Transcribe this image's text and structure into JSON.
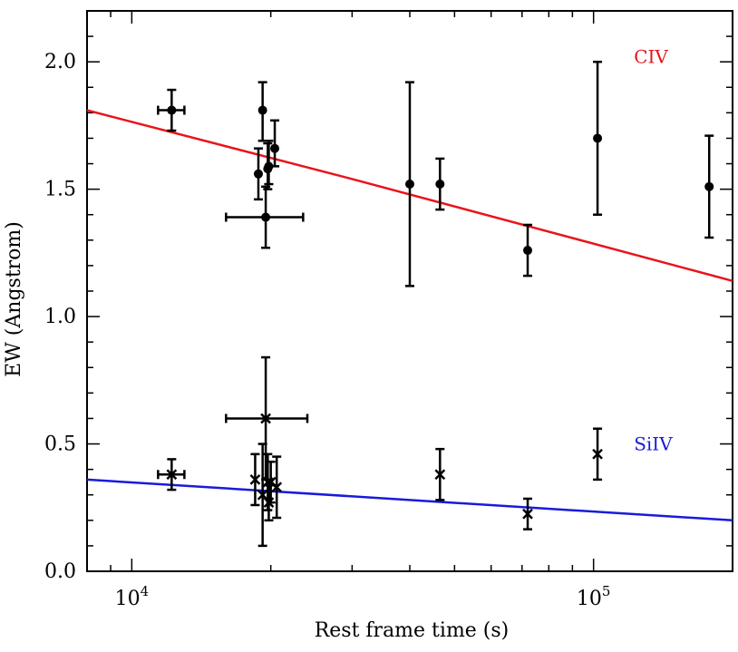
{
  "chart_data": {
    "type": "scatter",
    "xscale": "log",
    "xlim": [
      8000,
      200000
    ],
    "ylim": [
      0.0,
      2.2
    ],
    "xlabel": "Rest frame time (s)",
    "ylabel": "EW (Angstrom)",
    "xticks": [
      {
        "value": 10000,
        "base": "10",
        "exp": "4"
      },
      {
        "value": 100000,
        "base": "10",
        "exp": "5"
      }
    ],
    "yticks": [
      {
        "value": 0.0,
        "label": "0.0"
      },
      {
        "value": 0.5,
        "label": "0.5"
      },
      {
        "value": 1.0,
        "label": "1.0"
      },
      {
        "value": 1.5,
        "label": "1.5"
      },
      {
        "value": 2.0,
        "label": "2.0"
      }
    ],
    "series": [
      {
        "name": "CIV",
        "label_color": "#e8141b",
        "line_color": "#e8141b",
        "marker_color": "#000000",
        "marker": "circle",
        "label_position": {
          "x": 103000,
          "y": 2.02
        },
        "fit": [
          [
            8000,
            1.81
          ],
          [
            30000,
            1.54
          ],
          [
            200000,
            1.14
          ]
        ],
        "points": [
          {
            "x": 12200,
            "y": 1.81,
            "xerr": [
              11400,
              13000
            ],
            "yerr": [
              1.73,
              1.89
            ]
          },
          {
            "x": 18800,
            "y": 1.56,
            "yerr": [
              1.46,
              1.66
            ]
          },
          {
            "x": 19200,
            "y": 1.81,
            "yerr": [
              1.69,
              1.92
            ]
          },
          {
            "x": 19500,
            "y": 1.39,
            "xerr": [
              16000,
              23500
            ],
            "yerr": [
              1.27,
              1.51
            ]
          },
          {
            "x": 19700,
            "y": 1.58,
            "yerr": [
              1.5,
              1.68
            ]
          },
          {
            "x": 19800,
            "y": 1.59,
            "yerr": [
              1.52,
              1.69
            ]
          },
          {
            "x": 20400,
            "y": 1.66,
            "yerr": [
              1.59,
              1.77
            ]
          },
          {
            "x": 40000,
            "y": 1.52,
            "yerr": [
              1.12,
              1.92
            ]
          },
          {
            "x": 46500,
            "y": 1.52,
            "yerr": [
              1.42,
              1.62
            ]
          },
          {
            "x": 72000,
            "y": 1.26,
            "yerr": [
              1.16,
              1.36
            ]
          },
          {
            "x": 102000,
            "y": 1.7,
            "yerr": [
              1.4,
              2.0
            ]
          },
          {
            "x": 178000,
            "y": 1.51,
            "yerr": [
              1.31,
              1.71
            ]
          }
        ]
      },
      {
        "name": "SiIV",
        "label_color": "#1a1adc",
        "line_color": "#1a1adc",
        "marker_color": "#000000",
        "marker": "cross",
        "label_position": {
          "x": 103000,
          "y": 0.5
        },
        "fit": [
          [
            8000,
            0.36
          ],
          [
            200000,
            0.2
          ]
        ],
        "points": [
          {
            "x": 12200,
            "y": 0.38,
            "xerr": [
              11400,
              13000
            ],
            "yerr": [
              0.32,
              0.44
            ]
          },
          {
            "x": 18500,
            "y": 0.36,
            "yerr": [
              0.26,
              0.46
            ]
          },
          {
            "x": 19200,
            "y": 0.3,
            "yerr": [
              0.1,
              0.5
            ]
          },
          {
            "x": 19500,
            "y": 0.6,
            "xerr": [
              16000,
              24000
            ],
            "yerr": [
              0.36,
              0.84
            ]
          },
          {
            "x": 19700,
            "y": 0.35,
            "yerr": [
              0.24,
              0.46
            ]
          },
          {
            "x": 19800,
            "y": 0.27,
            "yerr": [
              0.2,
              0.34
            ]
          },
          {
            "x": 20000,
            "y": 0.35,
            "yerr": [
              0.27,
              0.43
            ]
          },
          {
            "x": 20600,
            "y": 0.33,
            "yerr": [
              0.21,
              0.45
            ]
          },
          {
            "x": 46500,
            "y": 0.38,
            "yerr": [
              0.28,
              0.48
            ]
          },
          {
            "x": 72000,
            "y": 0.225,
            "yerr": [
              0.165,
              0.285
            ]
          },
          {
            "x": 102000,
            "y": 0.46,
            "yerr": [
              0.36,
              0.56
            ]
          }
        ]
      }
    ]
  }
}
